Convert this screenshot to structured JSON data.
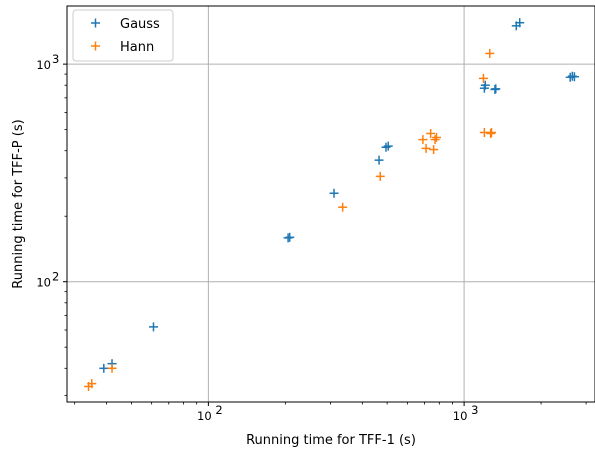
{
  "chart_data": {
    "type": "scatter",
    "xlabel": "Running time for TFF-1 (s)",
    "ylabel": "Running time for TFF-P (s)",
    "xscale": "log",
    "yscale": "log",
    "xlim": [
      28,
      3250
    ],
    "ylim": [
      28,
      1850
    ],
    "grid": true,
    "legend_position": "top-left",
    "x_ticks": [
      {
        "value": 100,
        "label": "10",
        "exp": "2"
      },
      {
        "value": 1000,
        "label": "10",
        "exp": "3"
      }
    ],
    "y_ticks": [
      {
        "value": 100,
        "label": "10",
        "exp": "2"
      },
      {
        "value": 1000,
        "label": "10",
        "exp": "3"
      }
    ],
    "series": [
      {
        "name": "Gauss",
        "color": "#1f77b4",
        "marker": "plus",
        "points": [
          [
            39,
            40
          ],
          [
            42,
            42
          ],
          [
            61,
            62
          ],
          [
            205,
            159
          ],
          [
            208,
            160
          ],
          [
            310,
            255
          ],
          [
            465,
            362
          ],
          [
            495,
            415
          ],
          [
            505,
            420
          ],
          [
            1200,
            775
          ],
          [
            1210,
            800
          ],
          [
            1320,
            765
          ],
          [
            1330,
            770
          ],
          [
            1600,
            1500
          ],
          [
            1650,
            1550
          ],
          [
            2600,
            870
          ],
          [
            2650,
            880
          ],
          [
            2700,
            875
          ]
        ]
      },
      {
        "name": "Hann",
        "color": "#ff7f0e",
        "marker": "plus",
        "points": [
          [
            34,
            33
          ],
          [
            35,
            34
          ],
          [
            42,
            40
          ],
          [
            335,
            220
          ],
          [
            470,
            305
          ],
          [
            690,
            450
          ],
          [
            710,
            410
          ],
          [
            740,
            480
          ],
          [
            760,
            405
          ],
          [
            770,
            450
          ],
          [
            780,
            460
          ],
          [
            1190,
            860
          ],
          [
            1200,
            485
          ],
          [
            1260,
            1120
          ],
          [
            1270,
            480
          ],
          [
            1280,
            485
          ]
        ]
      }
    ]
  }
}
